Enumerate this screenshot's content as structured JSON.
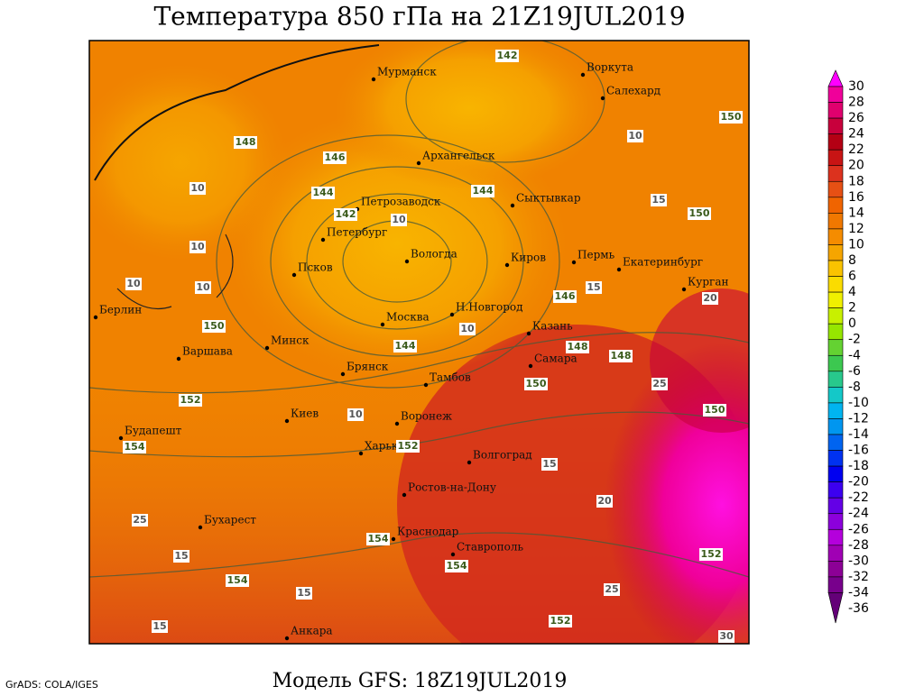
{
  "title": "Температура 850 гПа на 21Z19JUL2019",
  "subtitle": "Модель GFS: 18Z19JUL2019",
  "credit": "GrADS: COLA/IGES",
  "cities": [
    "Мурманск",
    "Воркута",
    "Салехард",
    "Архангельск",
    "Сыктывкар",
    "Петрозаводск",
    "Петербург",
    "Вологда",
    "Киров",
    "Пермь",
    "Екатеринбург",
    "Курган",
    "Псков",
    "Берлин",
    "Москва",
    "Н.Новгород",
    "Казань",
    "Варшава",
    "Минск",
    "Самара",
    "Брянск",
    "Тамбов",
    "Киев",
    "Воронеж",
    "Будапешт",
    "Харьков",
    "Волгоград",
    "Ростов-на-Дону",
    "Бухарест",
    "Краснодар",
    "Ставрополь",
    "Анкара"
  ],
  "contour_labels": [
    142,
    150,
    148,
    10,
    146,
    10,
    144,
    144,
    15,
    150,
    142,
    10,
    10,
    10,
    10,
    146,
    15,
    20,
    150,
    10,
    144,
    148,
    148,
    150,
    152,
    25,
    10,
    150,
    154,
    152,
    15,
    20,
    25,
    154,
    15,
    152,
    154,
    154,
    25,
    15,
    152,
    15,
    30
  ],
  "colorbar": {
    "labels": [
      30,
      28,
      26,
      24,
      22,
      20,
      18,
      16,
      14,
      12,
      10,
      8,
      6,
      4,
      2,
      0,
      -2,
      -4,
      -6,
      -8,
      -10,
      -12,
      -14,
      -16,
      -18,
      -20,
      -22,
      -24,
      -26,
      -28,
      -30,
      -32,
      -34,
      -36
    ],
    "colors": [
      "#ff00ff",
      "#f0009a",
      "#e0006e",
      "#c8003c",
      "#b40014",
      "#c81414",
      "#dc321e",
      "#e65014",
      "#f06400",
      "#f07800",
      "#f58c00",
      "#f5a500",
      "#fac300",
      "#fadc00",
      "#f0f000",
      "#c8f000",
      "#96e600",
      "#64d232",
      "#3cc850",
      "#28c88c",
      "#14c8c8",
      "#00b4f0",
      "#0096f0",
      "#0064f0",
      "#0032f0",
      "#0000f0",
      "#3c00f0",
      "#6400e6",
      "#8c00dc",
      "#b400dc",
      "#a000b4",
      "#8c0096",
      "#78008c",
      "#640078"
    ]
  }
}
